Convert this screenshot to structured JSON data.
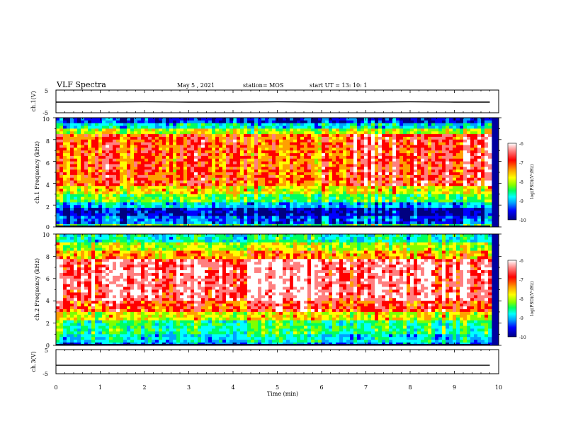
{
  "header": {
    "title": "VLF Spectra",
    "date": "May 5 , 2021",
    "station": "station= MOS",
    "start": "start UT = 13: 10: 1"
  },
  "colors": {
    "scale": [
      "#000080",
      "#0000ff",
      "#00a0ff",
      "#00ffff",
      "#00ff60",
      "#80ff00",
      "#ffff00",
      "#ffa000",
      "#ff0000",
      "#ff8080",
      "#ffffff"
    ]
  },
  "chart_data": [
    {
      "type": "line",
      "panel": "ch1-voltage",
      "ylabel": "ch.1(V)",
      "ylim": [
        -5,
        5
      ],
      "y_ticks": [
        "5",
        "-5"
      ],
      "x": [
        0,
        1,
        2,
        3,
        4,
        5,
        6,
        7,
        8,
        9,
        9.8
      ],
      "values": [
        -0.3,
        -0.3,
        -0.2,
        -0.3,
        -0.3,
        -0.2,
        -0.3,
        -0.3,
        -0.2,
        -0.3,
        -0.3
      ]
    },
    {
      "type": "heatmap",
      "panel": "ch1-spectrogram",
      "ylabel": "ch.1 Frequency (kHz)",
      "ylim": [
        0,
        10
      ],
      "y_ticks": [
        "0",
        "2",
        "4",
        "6",
        "8",
        "10"
      ],
      "xlim": [
        0,
        10
      ],
      "colorbar": {
        "label": "log(PSD)(V²/Hz)",
        "range": [
          -10,
          -6
        ],
        "ticks": [
          "-6",
          "-7",
          "-8",
          "-9",
          "-10"
        ]
      }
    },
    {
      "type": "heatmap",
      "panel": "ch2-spectrogram",
      "ylabel": "ch.2 Frequency (kHz)",
      "ylim": [
        0,
        10
      ],
      "y_ticks": [
        "0",
        "2",
        "4",
        "6",
        "8",
        "10"
      ],
      "xlim": [
        0,
        10
      ],
      "colorbar": {
        "label": "log(PSD)(V²/Hz)",
        "range": [
          -10,
          -6
        ],
        "ticks": [
          "-6",
          "-7",
          "-8",
          "-9",
          "-10"
        ]
      }
    },
    {
      "type": "line",
      "panel": "ch3-voltage",
      "ylabel": "ch.3(V)",
      "ylim": [
        -5,
        5
      ],
      "y_ticks": [
        "5",
        "-5"
      ],
      "x": [
        0,
        9.8
      ],
      "values": [
        -1.5,
        -1.5
      ]
    }
  ],
  "x_axis": {
    "label": "Time (min)",
    "ticks": [
      "0",
      "1",
      "2",
      "3",
      "4",
      "5",
      "6",
      "7",
      "8",
      "9",
      "10"
    ]
  }
}
